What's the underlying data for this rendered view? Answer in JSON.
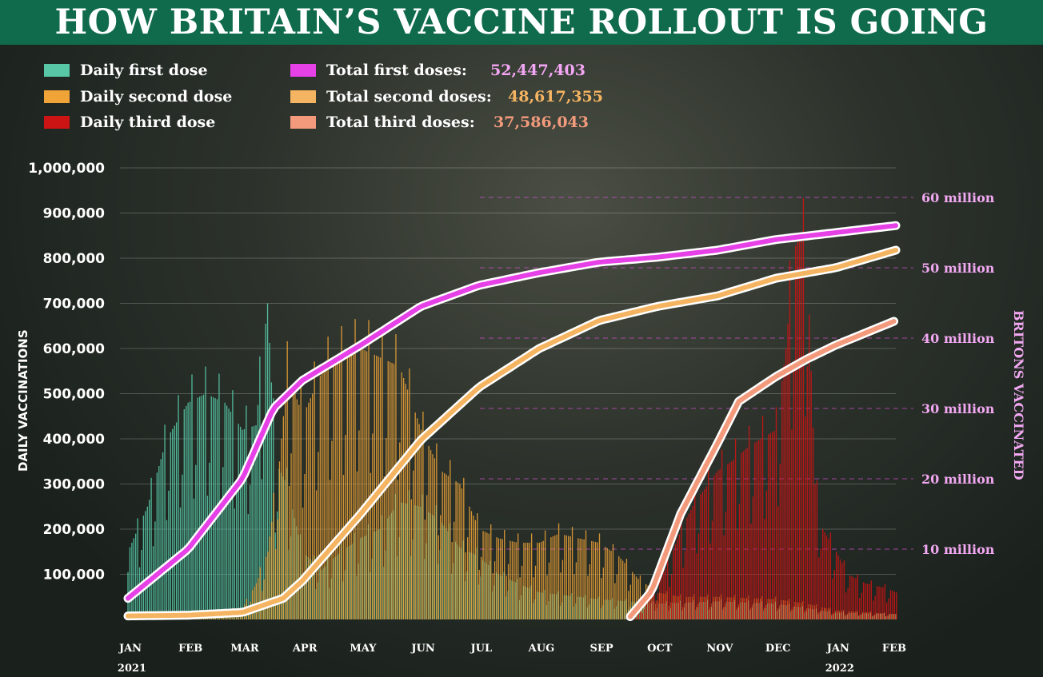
{
  "header": {
    "title": "HOW BRITAIN’S VACCINE ROLLOUT IS GOING"
  },
  "legend": {
    "daily": [
      {
        "label": "Daily first dose",
        "color": "#57c7a5"
      },
      {
        "label": "Daily second dose",
        "color": "#f0a437"
      },
      {
        "label": "Daily third dose",
        "color": "#cc1414"
      }
    ],
    "totals": [
      {
        "label": "Total first doses:",
        "value": "52,447,403",
        "color": "#e641e6",
        "value_color": "#f3a6f3"
      },
      {
        "label": "Total second doses:",
        "value": "48,617,355",
        "color": "#f5b461",
        "value_color": "#f5b461"
      },
      {
        "label": "Total third doses:",
        "value": "37,586,043",
        "color": "#f39a7c",
        "value_color": "#f39a7c"
      }
    ]
  },
  "chart_data": {
    "type": "bar",
    "ylabel": "DAILY VACCINATIONS",
    "y2label": "BRITONS VACCINATED",
    "ylim": [
      0,
      1000000
    ],
    "y_ticks": [
      "100,000",
      "200,000",
      "300,000",
      "400,000",
      "500,000",
      "600,000",
      "700,000",
      "800,000",
      "900,000",
      "1,000,000"
    ],
    "y_tick_values": [
      100000,
      200000,
      300000,
      400000,
      500000,
      600000,
      700000,
      800000,
      900000,
      1000000
    ],
    "y2lim": [
      0,
      65000000
    ],
    "y2_ticks": [
      "10 million",
      "20 million",
      "30 million",
      "40 million",
      "50 million",
      "60 million"
    ],
    "y2_tick_values": [
      10000000,
      20000000,
      30000000,
      40000000,
      50000000,
      60000000
    ],
    "x_months": [
      "JAN",
      "FEB",
      "MAR",
      "APR",
      "MAY",
      "JUN",
      "JUL",
      "AUG",
      "SEP",
      "OCT",
      "NOV",
      "DEC",
      "JAN",
      "FEB"
    ],
    "x_month_days": [
      0,
      31,
      59,
      90,
      120,
      151,
      181,
      212,
      243,
      273,
      304,
      334,
      365,
      396
    ],
    "x_years": [
      "2021",
      "2022"
    ],
    "x_year_days": [
      0,
      365
    ],
    "xlim_days": [
      0,
      396
    ],
    "bar_series": [
      {
        "name": "Daily first dose",
        "color": "#57c7a5",
        "points": [
          [
            0,
            150000
          ],
          [
            10,
            250000
          ],
          [
            20,
            400000
          ],
          [
            31,
            480000
          ],
          [
            40,
            500000
          ],
          [
            50,
            480000
          ],
          [
            59,
            420000
          ],
          [
            66,
            430000
          ],
          [
            72,
            700000
          ],
          [
            76,
            350000
          ],
          [
            82,
            300000
          ],
          [
            90,
            150000
          ],
          [
            100,
            110000
          ],
          [
            110,
            150000
          ],
          [
            120,
            180000
          ],
          [
            130,
            200000
          ],
          [
            140,
            260000
          ],
          [
            151,
            250000
          ],
          [
            161,
            220000
          ],
          [
            171,
            160000
          ],
          [
            181,
            140000
          ],
          [
            191,
            100000
          ],
          [
            201,
            80000
          ],
          [
            212,
            60000
          ],
          [
            243,
            45000
          ],
          [
            273,
            35000
          ],
          [
            304,
            40000
          ],
          [
            334,
            35000
          ],
          [
            350,
            25000
          ],
          [
            365,
            15000
          ],
          [
            396,
            12000
          ]
        ]
      },
      {
        "name": "Daily second dose",
        "color": "#f0a437",
        "points": [
          [
            0,
            5000
          ],
          [
            31,
            10000
          ],
          [
            59,
            25000
          ],
          [
            66,
            80000
          ],
          [
            72,
            150000
          ],
          [
            78,
            350000
          ],
          [
            82,
            550000
          ],
          [
            90,
            450000
          ],
          [
            100,
            550000
          ],
          [
            110,
            580000
          ],
          [
            120,
            600000
          ],
          [
            130,
            580000
          ],
          [
            140,
            560000
          ],
          [
            151,
            420000
          ],
          [
            161,
            330000
          ],
          [
            171,
            300000
          ],
          [
            181,
            200000
          ],
          [
            191,
            180000
          ],
          [
            201,
            170000
          ],
          [
            212,
            170000
          ],
          [
            222,
            190000
          ],
          [
            232,
            180000
          ],
          [
            243,
            170000
          ],
          [
            253,
            140000
          ],
          [
            263,
            90000
          ],
          [
            273,
            60000
          ],
          [
            285,
            50000
          ],
          [
            304,
            50000
          ],
          [
            334,
            45000
          ],
          [
            350,
            35000
          ],
          [
            365,
            20000
          ],
          [
            396,
            12000
          ]
        ]
      },
      {
        "name": "Daily third dose",
        "color": "#cc1414",
        "points": [
          [
            0,
            0
          ],
          [
            259,
            0
          ],
          [
            262,
            5000
          ],
          [
            270,
            60000
          ],
          [
            278,
            120000
          ],
          [
            285,
            200000
          ],
          [
            292,
            260000
          ],
          [
            299,
            300000
          ],
          [
            304,
            330000
          ],
          [
            311,
            350000
          ],
          [
            319,
            380000
          ],
          [
            326,
            400000
          ],
          [
            334,
            420000
          ],
          [
            339,
            600000
          ],
          [
            343,
            820000
          ],
          [
            347,
            850000
          ],
          [
            350,
            800000
          ],
          [
            354,
            300000
          ],
          [
            358,
            200000
          ],
          [
            365,
            150000
          ],
          [
            371,
            100000
          ],
          [
            380,
            80000
          ],
          [
            390,
            70000
          ],
          [
            396,
            60000
          ]
        ]
      }
    ],
    "line_series": [
      {
        "name": "Total first doses",
        "color": "#e641e6",
        "points": [
          [
            0,
            3000000
          ],
          [
            31,
            10000000
          ],
          [
            59,
            20000000
          ],
          [
            75,
            30000000
          ],
          [
            90,
            34000000
          ],
          [
            120,
            39000000
          ],
          [
            151,
            44500000
          ],
          [
            181,
            47500000
          ],
          [
            212,
            49300000
          ],
          [
            243,
            50800000
          ],
          [
            273,
            51500000
          ],
          [
            304,
            52500000
          ],
          [
            334,
            54000000
          ],
          [
            365,
            55000000
          ],
          [
            396,
            56000000
          ]
        ]
      },
      {
        "name": "Total second doses",
        "color": "#f5b461",
        "points": [
          [
            0,
            500000
          ],
          [
            31,
            600000
          ],
          [
            59,
            1000000
          ],
          [
            80,
            3000000
          ],
          [
            90,
            5500000
          ],
          [
            120,
            15000000
          ],
          [
            151,
            25500000
          ],
          [
            181,
            33000000
          ],
          [
            212,
            38500000
          ],
          [
            243,
            42500000
          ],
          [
            273,
            44500000
          ],
          [
            304,
            46000000
          ],
          [
            334,
            48500000
          ],
          [
            365,
            50000000
          ],
          [
            396,
            52500000
          ]
        ]
      },
      {
        "name": "Total third doses",
        "color": "#f39a7c",
        "points": [
          [
            259,
            400000
          ],
          [
            270,
            4000000
          ],
          [
            285,
            15000000
          ],
          [
            304,
            25000000
          ],
          [
            315,
            31000000
          ],
          [
            334,
            34500000
          ],
          [
            350,
            37000000
          ],
          [
            365,
            39000000
          ],
          [
            396,
            42500000
          ]
        ]
      }
    ]
  }
}
